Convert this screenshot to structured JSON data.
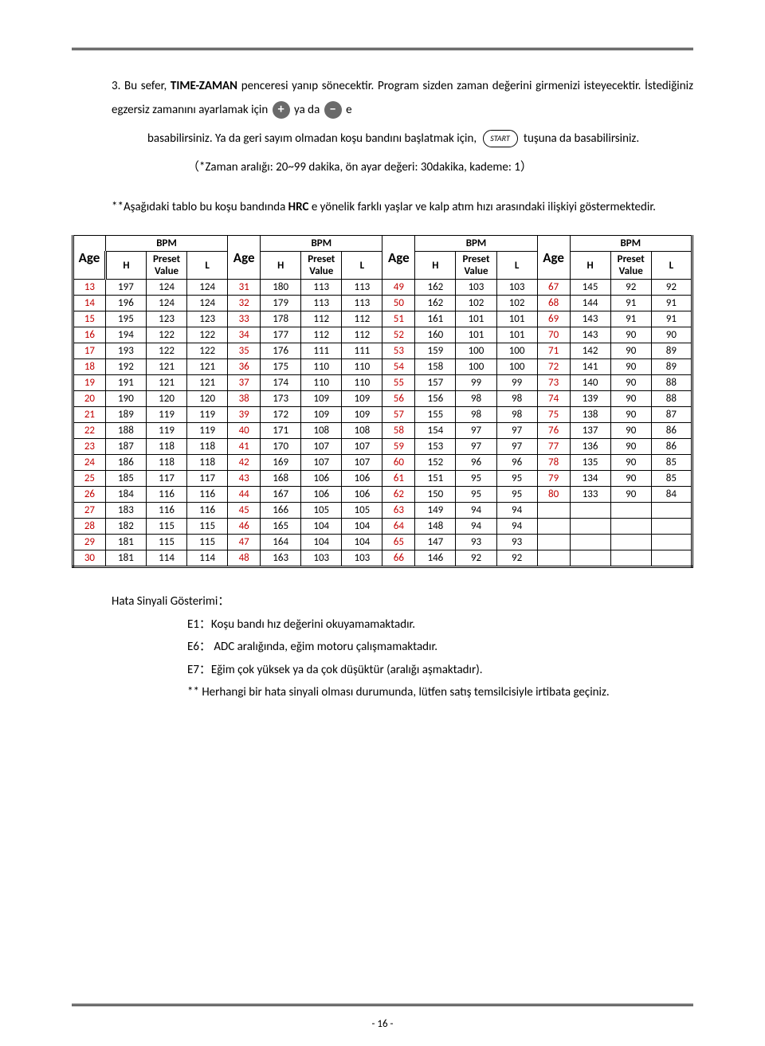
{
  "intro": {
    "numbered": "3. Bu sefer, ",
    "bold1": "TIME-ZAMAN",
    "p1_rest": " penceresi yanıp sönecektir. Program sizden zaman değerini girmenizi isteyecektir. İstediğiniz egzersiz zamanını ayarlamak için ",
    "yada": " ya da ",
    "e": " e",
    "p2a": "basabilirsiniz. Ya da geri sayım olmadan koşu bandını başlatmak için, ",
    "p2b": " tuşuna da basabilirsiniz.",
    "range_note": "（*Zaman aralığı: 20~99 dakika, ön ayar değeri: 30dakika, kademe: 1）",
    "p3a": "**Aşağıdaki tablo bu koşu bandında ",
    "p3bold": "HRC",
    "p3b": " e yönelik farklı yaşlar ve kalp atım hızı arasındaki ilişkiyi göstermektedir."
  },
  "icons": {
    "plus": "+",
    "minus": "−",
    "start": "START"
  },
  "table": {
    "age_header": "Age",
    "bpm_header": "BPM",
    "h_header": "H",
    "preset_header": "Preset Value",
    "l_header": "L",
    "rows": [
      {
        "a1": "13",
        "h1": "197",
        "p1": "124",
        "l1": "124",
        "a2": "31",
        "h2": "180",
        "p2": "113",
        "l2": "113",
        "a3": "49",
        "h3": "162",
        "p3": "103",
        "l3": "103",
        "a4": "67",
        "h4": "145",
        "p4": "92",
        "l4": "92"
      },
      {
        "a1": "14",
        "h1": "196",
        "p1": "124",
        "l1": "124",
        "a2": "32",
        "h2": "179",
        "p2": "113",
        "l2": "113",
        "a3": "50",
        "h3": "162",
        "p3": "102",
        "l3": "102",
        "a4": "68",
        "h4": "144",
        "p4": "91",
        "l4": "91"
      },
      {
        "a1": "15",
        "h1": "195",
        "p1": "123",
        "l1": "123",
        "a2": "33",
        "h2": "178",
        "p2": "112",
        "l2": "112",
        "a3": "51",
        "h3": "161",
        "p3": "101",
        "l3": "101",
        "a4": "69",
        "h4": "143",
        "p4": "91",
        "l4": "91"
      },
      {
        "a1": "16",
        "h1": "194",
        "p1": "122",
        "l1": "122",
        "a2": "34",
        "h2": "177",
        "p2": "112",
        "l2": "112",
        "a3": "52",
        "h3": "160",
        "p3": "101",
        "l3": "101",
        "a4": "70",
        "h4": "143",
        "p4": "90",
        "l4": "90"
      },
      {
        "a1": "17",
        "h1": "193",
        "p1": "122",
        "l1": "122",
        "a2": "35",
        "h2": "176",
        "p2": "111",
        "l2": "111",
        "a3": "53",
        "h3": "159",
        "p3": "100",
        "l3": "100",
        "a4": "71",
        "h4": "142",
        "p4": "90",
        "l4": "89"
      },
      {
        "a1": "18",
        "h1": "192",
        "p1": "121",
        "l1": "121",
        "a2": "36",
        "h2": "175",
        "p2": "110",
        "l2": "110",
        "a3": "54",
        "h3": "158",
        "p3": "100",
        "l3": "100",
        "a4": "72",
        "h4": "141",
        "p4": "90",
        "l4": "89"
      },
      {
        "a1": "19",
        "h1": "191",
        "p1": "121",
        "l1": "121",
        "a2": "37",
        "h2": "174",
        "p2": "110",
        "l2": "110",
        "a3": "55",
        "h3": "157",
        "p3": "99",
        "l3": "99",
        "a4": "73",
        "h4": "140",
        "p4": "90",
        "l4": "88"
      },
      {
        "a1": "20",
        "h1": "190",
        "p1": "120",
        "l1": "120",
        "a2": "38",
        "h2": "173",
        "p2": "109",
        "l2": "109",
        "a3": "56",
        "h3": "156",
        "p3": "98",
        "l3": "98",
        "a4": "74",
        "h4": "139",
        "p4": "90",
        "l4": "88"
      },
      {
        "a1": "21",
        "h1": "189",
        "p1": "119",
        "l1": "119",
        "a2": "39",
        "h2": "172",
        "p2": "109",
        "l2": "109",
        "a3": "57",
        "h3": "155",
        "p3": "98",
        "l3": "98",
        "a4": "75",
        "h4": "138",
        "p4": "90",
        "l4": "87"
      },
      {
        "a1": "22",
        "h1": "188",
        "p1": "119",
        "l1": "119",
        "a2": "40",
        "h2": "171",
        "p2": "108",
        "l2": "108",
        "a3": "58",
        "h3": "154",
        "p3": "97",
        "l3": "97",
        "a4": "76",
        "h4": "137",
        "p4": "90",
        "l4": "86"
      },
      {
        "a1": "23",
        "h1": "187",
        "p1": "118",
        "l1": "118",
        "a2": "41",
        "h2": "170",
        "p2": "107",
        "l2": "107",
        "a3": "59",
        "h3": "153",
        "p3": "97",
        "l3": "97",
        "a4": "77",
        "h4": "136",
        "p4": "90",
        "l4": "86"
      },
      {
        "a1": "24",
        "h1": "186",
        "p1": "118",
        "l1": "118",
        "a2": "42",
        "h2": "169",
        "p2": "107",
        "l2": "107",
        "a3": "60",
        "h3": "152",
        "p3": "96",
        "l3": "96",
        "a4": "78",
        "h4": "135",
        "p4": "90",
        "l4": "85"
      },
      {
        "a1": "25",
        "h1": "185",
        "p1": "117",
        "l1": "117",
        "a2": "43",
        "h2": "168",
        "p2": "106",
        "l2": "106",
        "a3": "61",
        "h3": "151",
        "p3": "95",
        "l3": "95",
        "a4": "79",
        "h4": "134",
        "p4": "90",
        "l4": "85"
      },
      {
        "a1": "26",
        "h1": "184",
        "p1": "116",
        "l1": "116",
        "a2": "44",
        "h2": "167",
        "p2": "106",
        "l2": "106",
        "a3": "62",
        "h3": "150",
        "p3": "95",
        "l3": "95",
        "a4": "80",
        "h4": "133",
        "p4": "90",
        "l4": "84"
      },
      {
        "a1": "27",
        "h1": "183",
        "p1": "116",
        "l1": "116",
        "a2": "45",
        "h2": "166",
        "p2": "105",
        "l2": "105",
        "a3": "63",
        "h3": "149",
        "p3": "94",
        "l3": "94",
        "a4": "",
        "h4": "",
        "p4": "",
        "l4": ""
      },
      {
        "a1": "28",
        "h1": "182",
        "p1": "115",
        "l1": "115",
        "a2": "46",
        "h2": "165",
        "p2": "104",
        "l2": "104",
        "a3": "64",
        "h3": "148",
        "p3": "94",
        "l3": "94",
        "a4": "",
        "h4": "",
        "p4": "",
        "l4": ""
      },
      {
        "a1": "29",
        "h1": "181",
        "p1": "115",
        "l1": "115",
        "a2": "47",
        "h2": "164",
        "p2": "104",
        "l2": "104",
        "a3": "65",
        "h3": "147",
        "p3": "93",
        "l3": "93",
        "a4": "",
        "h4": "",
        "p4": "",
        "l4": ""
      },
      {
        "a1": "30",
        "h1": "181",
        "p1": "114",
        "l1": "114",
        "a2": "48",
        "h2": "163",
        "p2": "103",
        "l2": "103",
        "a3": "66",
        "h3": "146",
        "p3": "92",
        "l3": "92",
        "a4": "",
        "h4": "",
        "p4": "",
        "l4": ""
      }
    ]
  },
  "errors": {
    "heading": "Hata Sinyali Gösterimi：",
    "e1": "E1：Koşu bandı hız değerini okuyamamaktadır.",
    "e6": "E6： ADC aralığında, eğim motoru çalışmamaktadır.",
    "e7": "E7：Eğim çok yüksek ya da çok düşüktür (aralığı aşmaktadır).",
    "note": "** Herhangi bir hata sinyali olması durumunda, lütfen satış temsilcisiyle irtibata geçiniz."
  },
  "page_number": "- 16 -",
  "style": {
    "age_color": "#c00000",
    "border_color": "#000000",
    "font_family": "Calibri, Arial, sans-serif"
  }
}
